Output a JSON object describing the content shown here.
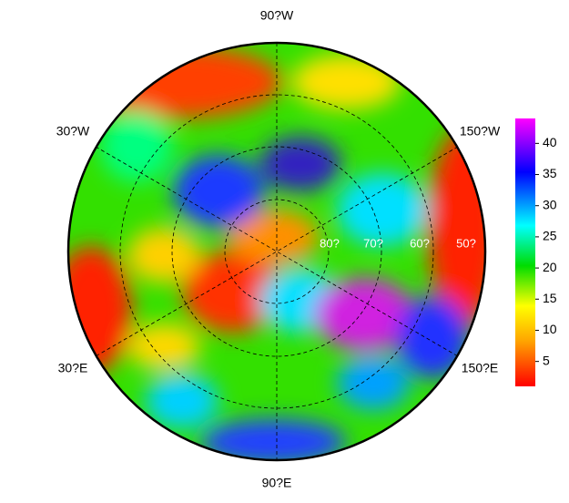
{
  "map": {
    "meridian_labels": {
      "top": "90?W",
      "upper_left": "30?W",
      "upper_right": "150?W",
      "lower_left": "30?E",
      "lower_right": "150?E",
      "bottom": "90?E"
    },
    "latitude_labels": [
      "80?",
      "70?",
      "60?",
      "50?"
    ],
    "colorbar": {
      "lim": [
        1,
        44
      ],
      "ticks": [
        5,
        10,
        15,
        20,
        25,
        30,
        35,
        40
      ]
    }
  }
}
